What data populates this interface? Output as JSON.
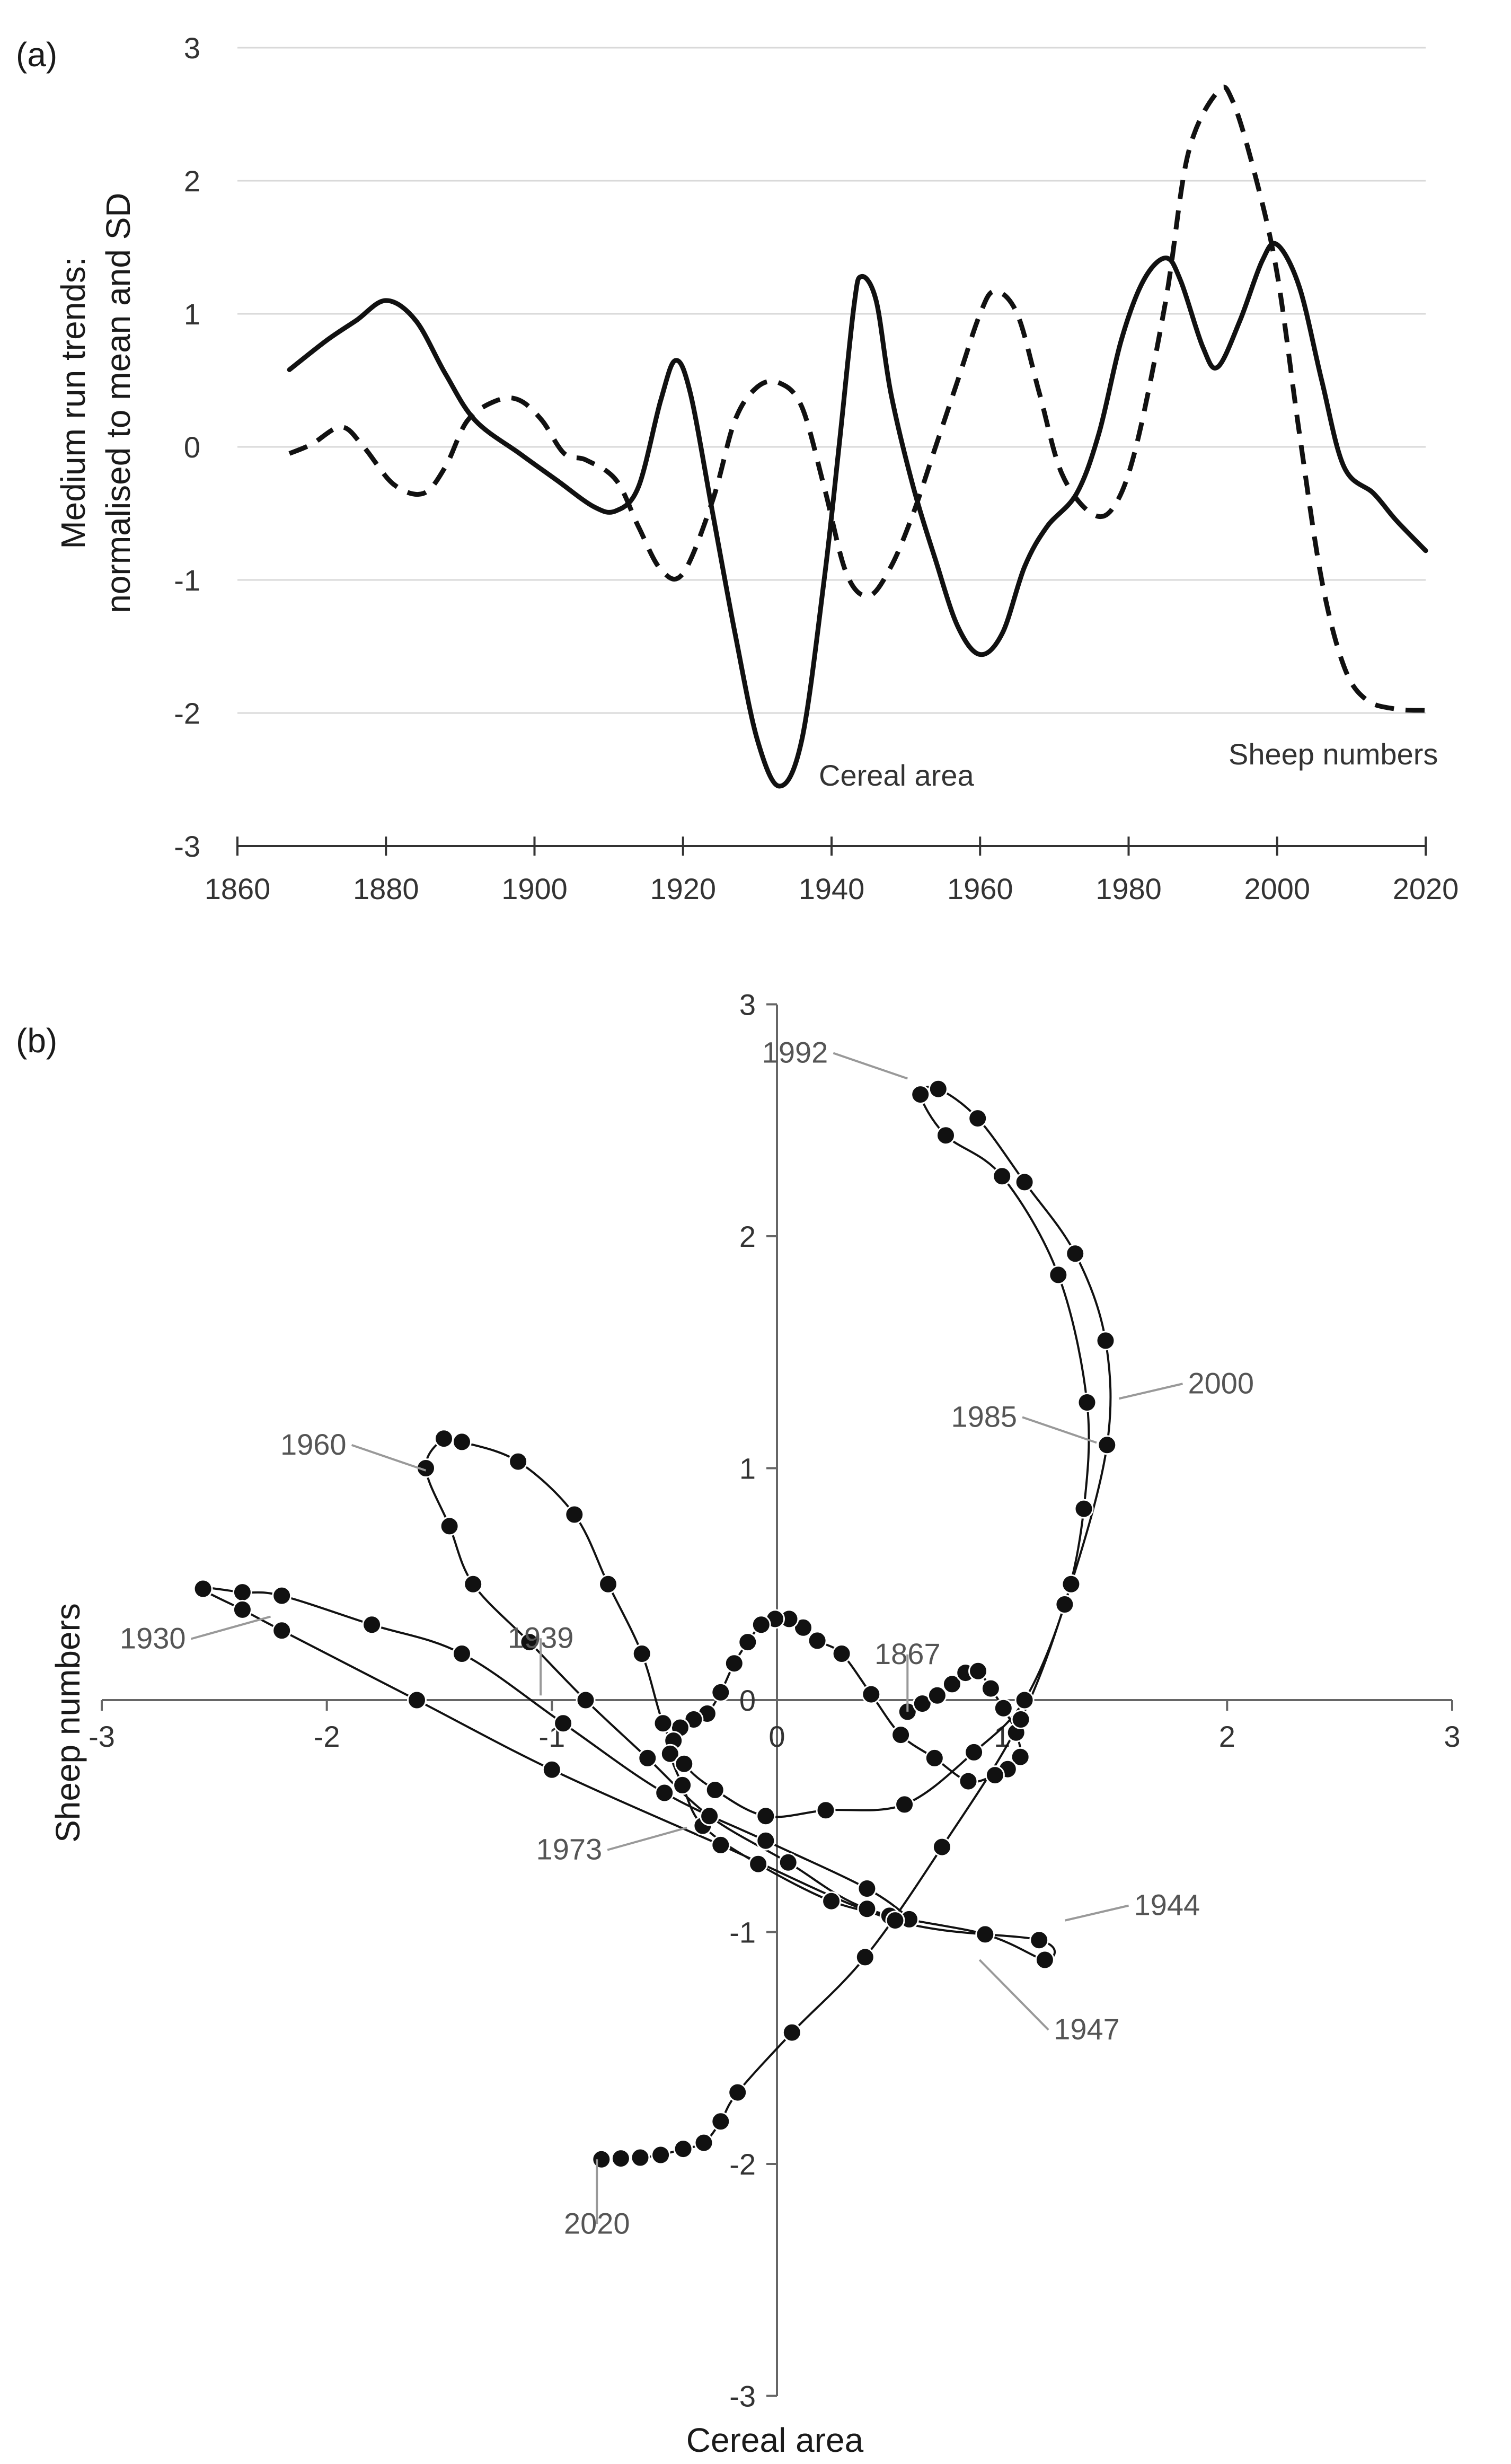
{
  "chart_data": [
    {
      "panel": "(a)",
      "type": "line",
      "ylabel_line1": "Medium run trends:",
      "ylabel_line2": "normalised to mean and SD",
      "xlabel": "",
      "xlim": [
        1860,
        2020
      ],
      "ylim": [
        -3,
        3
      ],
      "x_ticks": [
        "1860",
        "1880",
        "1900",
        "1920",
        "1940",
        "1960",
        "1980",
        "2000",
        "2020"
      ],
      "y_ticks": [
        "-3",
        "-2",
        "-1",
        "0",
        "1",
        "2",
        "3"
      ],
      "gridlines": true,
      "series": [
        {
          "name": "Cereal area",
          "style": "solid",
          "label_text": "Cereal area",
          "points": [
            [
              1867,
              0.58
            ],
            [
              1872,
              0.8
            ],
            [
              1876,
              0.95
            ],
            [
              1880,
              1.1
            ],
            [
              1884,
              0.95
            ],
            [
              1888,
              0.55
            ],
            [
              1892,
              0.2
            ],
            [
              1898,
              -0.05
            ],
            [
              1903,
              -0.25
            ],
            [
              1908,
              -0.45
            ],
            [
              1911,
              -0.48
            ],
            [
              1914,
              -0.3
            ],
            [
              1917,
              0.35
            ],
            [
              1919,
              0.65
            ],
            [
              1921,
              0.4
            ],
            [
              1924,
              -0.5
            ],
            [
              1927,
              -1.4
            ],
            [
              1930,
              -2.2
            ],
            [
              1933,
              -2.55
            ],
            [
              1936,
              -2.2
            ],
            [
              1939,
              -1.0
            ],
            [
              1941,
              0.0
            ],
            [
              1943,
              1.05
            ],
            [
              1944,
              1.28
            ],
            [
              1946,
              1.1
            ],
            [
              1948,
              0.4
            ],
            [
              1951,
              -0.3
            ],
            [
              1954,
              -0.85
            ],
            [
              1957,
              -1.35
            ],
            [
              1960,
              -1.56
            ],
            [
              1963,
              -1.4
            ],
            [
              1966,
              -0.9
            ],
            [
              1969,
              -0.6
            ],
            [
              1973,
              -0.35
            ],
            [
              1976,
              0.1
            ],
            [
              1979,
              0.8
            ],
            [
              1982,
              1.25
            ],
            [
              1985,
              1.42
            ],
            [
              1987,
              1.25
            ],
            [
              1990,
              0.75
            ],
            [
              1992,
              0.6
            ],
            [
              1995,
              0.95
            ],
            [
              1998,
              1.4
            ],
            [
              2000,
              1.52
            ],
            [
              2003,
              1.2
            ],
            [
              2006,
              0.5
            ],
            [
              2009,
              -0.15
            ],
            [
              2013,
              -0.35
            ],
            [
              2016,
              -0.55
            ],
            [
              2020,
              -0.78
            ]
          ]
        },
        {
          "name": "Sheep numbers",
          "style": "dashed",
          "label_text": "Sheep numbers",
          "points": [
            [
              1867,
              -0.05
            ],
            [
              1870,
              0.02
            ],
            [
              1874,
              0.15
            ],
            [
              1877,
              0.0
            ],
            [
              1881,
              -0.28
            ],
            [
              1885,
              -0.35
            ],
            [
              1888,
              -0.15
            ],
            [
              1891,
              0.2
            ],
            [
              1895,
              0.35
            ],
            [
              1898,
              0.35
            ],
            [
              1901,
              0.2
            ],
            [
              1904,
              -0.05
            ],
            [
              1907,
              -0.1
            ],
            [
              1911,
              -0.25
            ],
            [
              1914,
              -0.6
            ],
            [
              1917,
              -0.92
            ],
            [
              1920,
              -0.95
            ],
            [
              1924,
              -0.4
            ],
            [
              1927,
              0.2
            ],
            [
              1930,
              0.45
            ],
            [
              1933,
              0.48
            ],
            [
              1936,
              0.3
            ],
            [
              1939,
              -0.3
            ],
            [
              1942,
              -0.95
            ],
            [
              1945,
              -1.12
            ],
            [
              1948,
              -0.9
            ],
            [
              1951,
              -0.5
            ],
            [
              1954,
              0.0
            ],
            [
              1957,
              0.5
            ],
            [
              1960,
              1.0
            ],
            [
              1962,
              1.17
            ],
            [
              1965,
              1.0
            ],
            [
              1968,
              0.4
            ],
            [
              1971,
              -0.2
            ],
            [
              1975,
              -0.5
            ],
            [
              1978,
              -0.45
            ],
            [
              1981,
              0.0
            ],
            [
              1985,
              1.1
            ],
            [
              1988,
              2.2
            ],
            [
              1992,
              2.67
            ],
            [
              1994,
              2.6
            ],
            [
              1997,
              2.05
            ],
            [
              2000,
              1.3
            ],
            [
              2003,
              0.1
            ],
            [
              2006,
              -1.0
            ],
            [
              2009,
              -1.65
            ],
            [
              2012,
              -1.9
            ],
            [
              2016,
              -1.97
            ],
            [
              2020,
              -1.98
            ]
          ]
        }
      ]
    },
    {
      "panel": "(b)",
      "type": "scatter",
      "connected": true,
      "xlabel": "Cereal area",
      "ylabel": "Sheep numbers",
      "xlim": [
        -3,
        3
      ],
      "ylim": [
        -3,
        3
      ],
      "x_ticks": [
        "-3",
        "-2",
        "-1",
        "0",
        "1",
        "2",
        "3"
      ],
      "y_ticks": [
        "-3",
        "-2",
        "-1",
        "0",
        "1",
        "2",
        "3"
      ],
      "year_labels": [
        {
          "year": "1992",
          "x": 0.58,
          "y": 2.68,
          "anchor": "left"
        },
        {
          "year": "2000",
          "x": 1.52,
          "y": 1.3,
          "anchor": "right"
        },
        {
          "year": "1985",
          "x": 1.42,
          "y": 1.11,
          "anchor": "left"
        },
        {
          "year": "1960",
          "x": -1.56,
          "y": 0.99,
          "anchor": "left"
        },
        {
          "year": "1867",
          "x": 0.58,
          "y": -0.05,
          "anchor": "above"
        },
        {
          "year": "1939",
          "x": -1.05,
          "y": 0.02,
          "anchor": "above"
        },
        {
          "year": "1930",
          "x": -2.25,
          "y": 0.36,
          "anchor": "below-left"
        },
        {
          "year": "1973",
          "x": -0.4,
          "y": -0.55,
          "anchor": "below-left"
        },
        {
          "year": "1944",
          "x": 1.28,
          "y": -0.95,
          "anchor": "right"
        },
        {
          "year": "1947",
          "x": 0.9,
          "y": -1.12,
          "anchor": "below-right"
        },
        {
          "year": "2020",
          "x": -0.8,
          "y": -1.98,
          "anchor": "below"
        }
      ]
    }
  ]
}
